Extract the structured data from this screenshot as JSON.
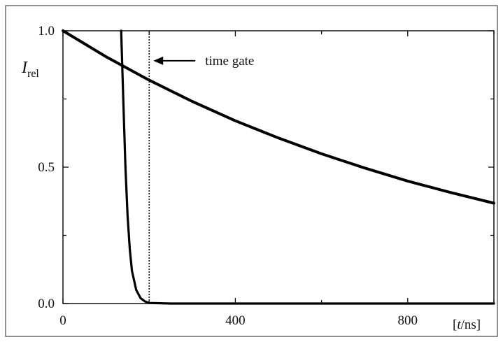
{
  "chart_data": {
    "type": "line",
    "xlim": [
      0,
      1000
    ],
    "ylim": [
      0.0,
      1.0
    ],
    "x_ticks": [
      0,
      400,
      800
    ],
    "x_tick_labels": [
      "0",
      "400",
      "800"
    ],
    "y_ticks": [
      0.0,
      0.5,
      1.0
    ],
    "y_tick_labels": [
      "0.0",
      "0.5",
      "1.0"
    ],
    "xlabel": {
      "prefix": "[",
      "var": "t",
      "suffix": "/ns]"
    },
    "ylabel": {
      "main": "I",
      "sub": "rel"
    },
    "grid": false,
    "series": [
      {
        "x": [
          0,
          100,
          200,
          300,
          400,
          500,
          600,
          700,
          800,
          900,
          1000
        ],
        "y": [
          1.0,
          0.905,
          0.819,
          0.741,
          0.67,
          0.607,
          0.549,
          0.497,
          0.449,
          0.407,
          0.368
        ]
      },
      {
        "x": [
          135,
          140,
          145,
          150,
          155,
          160,
          170,
          180,
          190,
          200,
          250,
          400,
          600,
          800,
          1000
        ],
        "y": [
          1.0,
          0.75,
          0.5,
          0.32,
          0.2,
          0.12,
          0.05,
          0.02,
          0.008,
          0.002,
          0.0,
          0.0,
          0.0,
          0.0,
          0.0
        ]
      }
    ],
    "annotations": [
      {
        "text": "time gate",
        "type": "vertical-dotted-line",
        "x": 200,
        "arrow": "pointing-left-to-line",
        "text_y": 0.89
      }
    ]
  }
}
